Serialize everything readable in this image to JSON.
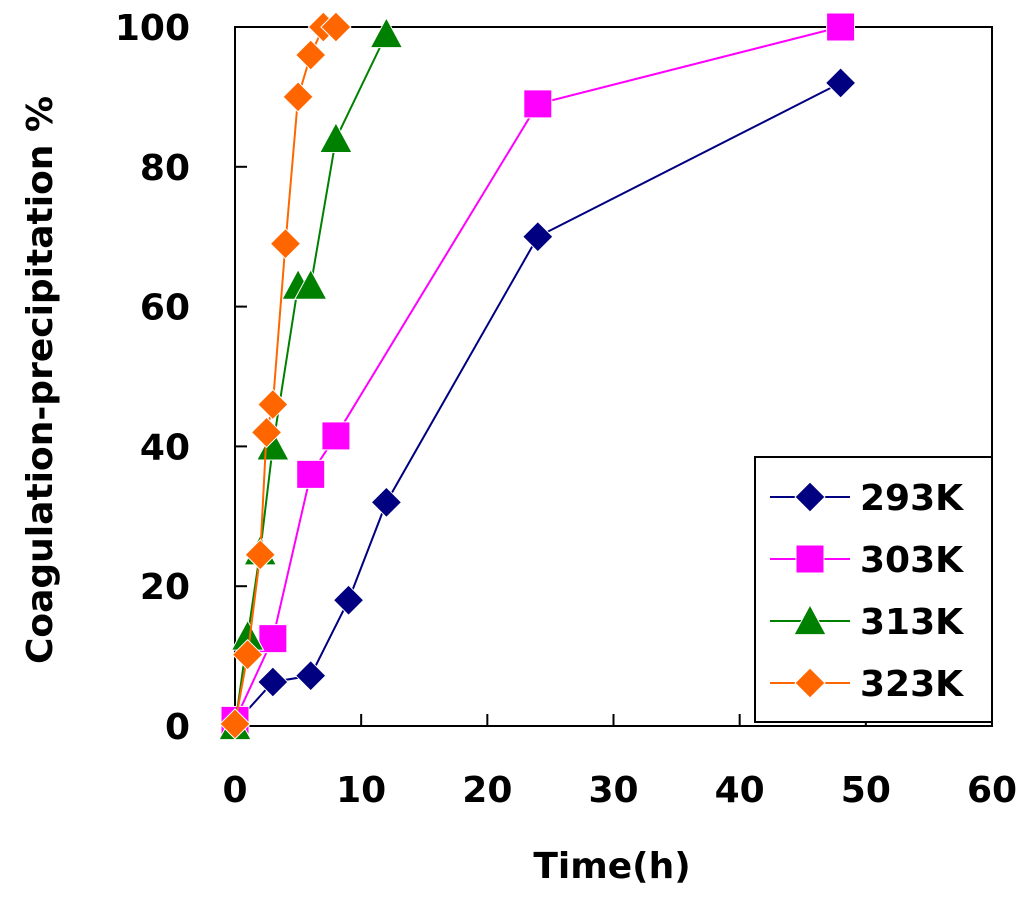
{
  "chart_data": {
    "type": "line",
    "title": "",
    "xlabel": "Time(h)",
    "ylabel": "Coagulation-precipitation %",
    "xlim": [
      0,
      60
    ],
    "ylim": [
      0,
      100
    ],
    "xticks": [
      "0",
      "10",
      "20",
      "30",
      "40",
      "50",
      "60"
    ],
    "yticks": [
      "0",
      "20",
      "40",
      "60",
      "80",
      "100"
    ],
    "legend_position": "bottom-right",
    "grid": false,
    "series": [
      {
        "name": "293K",
        "color": "#000080",
        "marker": "diamond",
        "points": [
          [
            0,
            0.3
          ],
          [
            3,
            6.3
          ],
          [
            6,
            7.2
          ],
          [
            9,
            18
          ],
          [
            12,
            32
          ],
          [
            24,
            70
          ],
          [
            48,
            92
          ]
        ]
      },
      {
        "name": "303K",
        "color": "#FF00FF",
        "marker": "square",
        "points": [
          [
            0,
            0.8
          ],
          [
            3,
            12.5
          ],
          [
            6,
            36
          ],
          [
            8,
            41.5
          ],
          [
            24,
            89
          ],
          [
            48,
            100
          ]
        ]
      },
      {
        "name": "313K",
        "color": "#008000",
        "marker": "triangle",
        "points": [
          [
            0,
            0
          ],
          [
            1,
            12.8
          ],
          [
            2,
            25
          ],
          [
            3,
            40
          ],
          [
            5,
            63
          ],
          [
            6,
            63
          ],
          [
            8,
            84
          ],
          [
            12,
            99
          ]
        ]
      },
      {
        "name": "323K",
        "color": "#FF6600",
        "marker": "diamond",
        "points": [
          [
            0,
            0.3
          ],
          [
            1,
            10.2
          ],
          [
            2,
            24.5
          ],
          [
            2.5,
            42
          ],
          [
            3,
            46
          ],
          [
            4,
            69
          ],
          [
            5,
            90
          ],
          [
            6,
            96
          ],
          [
            7,
            100
          ],
          [
            8,
            100
          ]
        ]
      }
    ]
  }
}
